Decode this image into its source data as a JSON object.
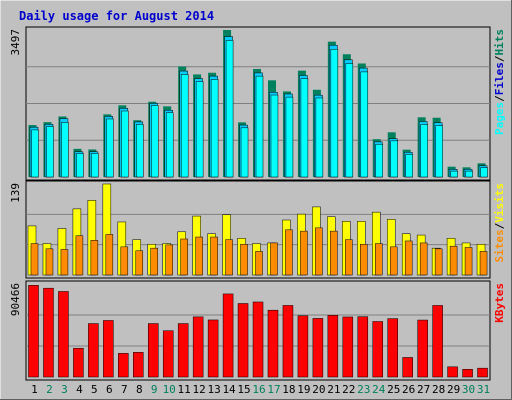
{
  "chart_data": {
    "type": "bar",
    "title": "Daily usage for August 2014",
    "days": [
      "1",
      "2",
      "3",
      "4",
      "5",
      "6",
      "7",
      "8",
      "9",
      "10",
      "11",
      "12",
      "13",
      "14",
      "15",
      "16",
      "17",
      "18",
      "19",
      "20",
      "21",
      "22",
      "23",
      "24",
      "25",
      "26",
      "27",
      "28",
      "29",
      "30",
      "31"
    ],
    "weekend_days": [
      "2",
      "3",
      "9",
      "10",
      "16",
      "17",
      "23",
      "24",
      "30",
      "31"
    ],
    "colors": {
      "background": "#c0c0c0",
      "hits": "#00805c",
      "files": "#00ccff",
      "pages": "#00ffff",
      "visits": "#ffff00",
      "sites": "#ff8c00",
      "kbytes": "#ff0000",
      "title": "#0000cc",
      "weekday_label": "#000000",
      "weekend_label": "#00805c"
    },
    "panels": [
      {
        "id": "hits-files-pages",
        "ymax_label": "3497",
        "ymax": 3497,
        "legend": [
          {
            "label": "Pages",
            "color": "#00ffff"
          },
          {
            "label": "/",
            "color": "#000000"
          },
          {
            "label": "Files",
            "color": "#0000cc"
          },
          {
            "label": "/",
            "color": "#000000"
          },
          {
            "label": "Hits",
            "color": "#00805c"
          }
        ],
        "series": [
          {
            "name": "Hits",
            "values": [
              1235,
              1305,
              1440,
              670,
              655,
              1490,
              1705,
              1350,
              1790,
              1680,
              2630,
              2440,
              2480,
              3497,
              1300,
              2570,
              2300,
              2035,
              2530,
              2075,
              3220,
              2920,
              2700,
              900,
              1063,
              650,
              1420,
              1410,
              245,
              230,
              325
            ]
          },
          {
            "name": "Files",
            "values": [
              1185,
              1255,
              1390,
              600,
              600,
              1440,
              1633,
              1310,
              1750,
              1587,
              2520,
              2340,
              2400,
              3340,
              1235,
              2476,
              2015,
              1975,
              2416,
              1947,
              3135,
              2788,
              2591,
              835,
              912,
              588,
              1320,
              1291,
              183,
              183,
              267
            ]
          },
          {
            "name": "Pages",
            "values": [
              1120,
              1200,
              1300,
              560,
              560,
              1380,
              1570,
              1250,
              1700,
              1530,
              2440,
              2270,
              2320,
              3250,
              1170,
              2400,
              1950,
              1900,
              2340,
              1880,
              3040,
              2700,
              2500,
              780,
              860,
              540,
              1250,
              1220,
              140,
              140,
              220
            ]
          }
        ]
      },
      {
        "id": "visits-sites",
        "ymax_label": "139",
        "ymax": 139,
        "legend": [
          {
            "label": "Sites",
            "color": "#ff8c00"
          },
          {
            "label": "/",
            "color": "#000000"
          },
          {
            "label": "Visits",
            "color": "#ffff00"
          }
        ],
        "series": [
          {
            "name": "Visits",
            "values": [
              75,
              48,
              71,
              101,
              114,
              139,
              81,
              54,
              47,
              48,
              66,
              90,
              63,
              92,
              56,
              48,
              49,
              84,
              93,
              104,
              89,
              82,
              82,
              96,
              85,
              63,
              61,
              41,
              56,
              49,
              47
            ]
          },
          {
            "name": "Sites",
            "values": [
              48,
              40,
              39,
              60,
              53,
              62,
              43,
              37,
              41,
              46,
              55,
              58,
              58,
              54,
              47,
              36,
              49,
              69,
              67,
              72,
              67,
              54,
              47,
              48,
              43,
              52,
              49,
              40,
              44,
              42,
              36
            ]
          }
        ]
      },
      {
        "id": "kbytes",
        "ymax_label": "90466",
        "ymax": 90466,
        "legend": [
          {
            "label": "KBytes",
            "color": "#ff0000"
          }
        ],
        "series": [
          {
            "name": "KBytes",
            "values": [
              89200,
              86400,
              83200,
              28000,
              52000,
              55000,
              23000,
              24000,
              52000,
              45000,
              52000,
              58500,
              55500,
              80800,
              71500,
              73000,
              65000,
              69600,
              59500,
              57000,
              60000,
              58400,
              58700,
              54000,
              56800,
              19000,
              55400,
              69600,
              9900,
              7500,
              8600
            ]
          }
        ]
      }
    ]
  }
}
